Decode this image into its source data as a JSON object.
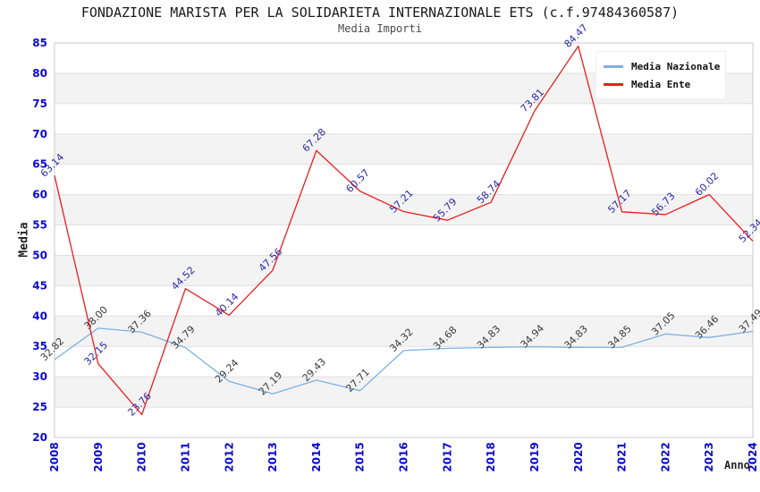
{
  "chart_data": {
    "type": "line",
    "title": "FONDAZIONE MARISTA PER LA SOLIDARIETA INTERNAZIONALE ETS (c.f.97484360587)",
    "subtitle": "Media Importi",
    "xlabel": "Anno",
    "ylabel": "Media",
    "ylim": [
      20,
      85
    ],
    "ytick_step": 5,
    "grid": true,
    "legend_position": "top-right",
    "band_color": "#f3f3f3",
    "grid_color": "#e0e0e0",
    "frame_color": "#c8c8c8",
    "tick_color": "#0a0ad0",
    "x": [
      "2008",
      "2009",
      "2010",
      "2011",
      "2012",
      "2013",
      "2014",
      "2015",
      "2016",
      "2017",
      "2018",
      "2019",
      "2020",
      "2021",
      "2022",
      "2023",
      "2024"
    ],
    "series": [
      {
        "name": "Media Nazionale",
        "color": "#7cb0e2",
        "label_color": "#3a3a3a",
        "values": [
          32.82,
          38.0,
          37.36,
          34.79,
          29.24,
          27.19,
          29.43,
          27.71,
          34.32,
          34.68,
          34.83,
          34.94,
          34.83,
          34.85,
          37.05,
          36.46,
          37.49
        ]
      },
      {
        "name": "Media Ente",
        "color": "#ea1e1e",
        "label_color": "#2929a3",
        "values": [
          63.14,
          32.15,
          23.76,
          44.52,
          40.14,
          47.56,
          67.28,
          60.57,
          57.21,
          55.79,
          58.74,
          73.81,
          84.47,
          57.17,
          56.73,
          60.02,
          52.34
        ]
      }
    ]
  }
}
